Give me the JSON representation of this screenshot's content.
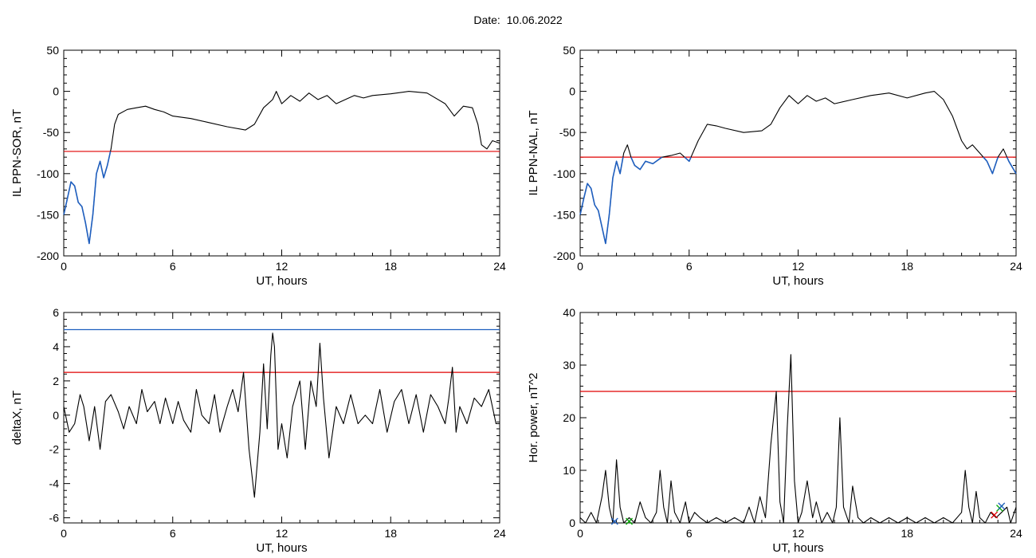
{
  "page": {
    "title": "Date:  10.06.2022"
  },
  "colors": {
    "axis": "#000000",
    "trace": "#000000",
    "highlight": "#1f5fbf",
    "red_threshold": "#e00000",
    "blue_threshold": "#1f5fbf",
    "green_marker": "#00aa00"
  },
  "chart_data": [
    {
      "type": "line",
      "id": "il-ppn-sor",
      "xlabel": "UT, hours",
      "ylabel": "IL PPN-SOR, nT",
      "xlim": [
        0,
        24
      ],
      "ylim": [
        -200,
        50
      ],
      "xticks": [
        0,
        6,
        12,
        18,
        24
      ],
      "yticks": [
        50,
        0,
        -50,
        -100,
        -150,
        -200
      ],
      "x": [
        0,
        0.2,
        0.4,
        0.6,
        0.8,
        1.0,
        1.2,
        1.4,
        1.6,
        1.8,
        2.0,
        2.2,
        2.4,
        2.6,
        2.8,
        3.0,
        3.5,
        4.0,
        4.5,
        5.0,
        5.5,
        6.0,
        7.0,
        8.0,
        9.0,
        10.0,
        10.5,
        11.0,
        11.5,
        11.7,
        12.0,
        12.5,
        13.0,
        13.5,
        14.0,
        14.5,
        15.0,
        15.5,
        16.0,
        16.5,
        17.0,
        18.0,
        19.0,
        20.0,
        21.0,
        21.5,
        22.0,
        22.5,
        22.8,
        23.0,
        23.3,
        23.6,
        24.0
      ],
      "series": [
        {
          "values": [
            -150,
            -130,
            -110,
            -115,
            -135,
            -140,
            -160,
            -185,
            -150,
            -100,
            -85,
            -105,
            -90,
            -70,
            -40,
            -28,
            -22,
            -20,
            -18,
            -22,
            -25,
            -30,
            -33,
            -38,
            -43,
            -47,
            -40,
            -20,
            -10,
            0,
            -15,
            -5,
            -12,
            -2,
            -10,
            -5,
            -15,
            -10,
            -5,
            -8,
            -5,
            -3,
            0,
            -2,
            -15,
            -30,
            -18,
            -20,
            -40,
            -65,
            -70,
            -60,
            -63
          ],
          "highlight_below": -73
        }
      ],
      "thresholds": [
        {
          "value": -73,
          "color": "red"
        }
      ]
    },
    {
      "type": "line",
      "id": "il-ppn-nal",
      "xlabel": "UT, hours",
      "ylabel": "IL PPN-NAL, nT",
      "xlim": [
        0,
        24
      ],
      "ylim": [
        -200,
        50
      ],
      "xticks": [
        0,
        6,
        12,
        18,
        24
      ],
      "yticks": [
        50,
        0,
        -50,
        -100,
        -150,
        -200
      ],
      "x": [
        0,
        0.2,
        0.4,
        0.6,
        0.8,
        1.0,
        1.2,
        1.4,
        1.6,
        1.8,
        2.0,
        2.2,
        2.4,
        2.6,
        2.8,
        3.0,
        3.3,
        3.6,
        4.0,
        4.5,
        5.0,
        5.5,
        6.0,
        6.5,
        7.0,
        7.5,
        8.0,
        9.0,
        10.0,
        10.5,
        11.0,
        11.5,
        12.0,
        12.5,
        13.0,
        13.5,
        14.0,
        15.0,
        16.0,
        17.0,
        18.0,
        19.0,
        19.5,
        20.0,
        20.5,
        21.0,
        21.3,
        21.6,
        22.0,
        22.4,
        22.7,
        23.0,
        23.3,
        23.6,
        24.0
      ],
      "series": [
        {
          "values": [
            -150,
            -130,
            -112,
            -118,
            -138,
            -145,
            -165,
            -185,
            -150,
            -105,
            -85,
            -100,
            -75,
            -65,
            -80,
            -90,
            -95,
            -85,
            -88,
            -80,
            -78,
            -75,
            -85,
            -60,
            -40,
            -42,
            -45,
            -50,
            -48,
            -40,
            -20,
            -5,
            -15,
            -5,
            -12,
            -8,
            -15,
            -10,
            -5,
            -2,
            -8,
            -2,
            0,
            -10,
            -30,
            -60,
            -70,
            -65,
            -75,
            -85,
            -100,
            -80,
            -70,
            -85,
            -100
          ],
          "highlight_below": -80
        }
      ],
      "thresholds": [
        {
          "value": -80,
          "color": "red"
        }
      ]
    },
    {
      "type": "line",
      "id": "delta-x",
      "xlabel": "UT, hours",
      "ylabel": "deltaX, nT",
      "xlim": [
        0,
        24
      ],
      "ylim": [
        -6.3,
        6
      ],
      "xticks": [
        0,
        6,
        12,
        18,
        24
      ],
      "yticks": [
        6,
        4,
        2,
        0,
        -2,
        -4,
        -6
      ],
      "x": [
        0,
        0.3,
        0.6,
        0.9,
        1.1,
        1.4,
        1.7,
        2.0,
        2.3,
        2.6,
        3.0,
        3.3,
        3.6,
        4.0,
        4.3,
        4.6,
        5.0,
        5.3,
        5.6,
        6.0,
        6.3,
        6.6,
        7.0,
        7.3,
        7.6,
        8.0,
        8.3,
        8.6,
        9.0,
        9.3,
        9.6,
        9.9,
        10.2,
        10.5,
        10.8,
        11.0,
        11.2,
        11.4,
        11.5,
        11.6,
        11.8,
        12.0,
        12.3,
        12.6,
        13.0,
        13.3,
        13.6,
        13.9,
        14.1,
        14.3,
        14.6,
        15.0,
        15.4,
        15.8,
        16.2,
        16.6,
        17.0,
        17.4,
        17.8,
        18.2,
        18.6,
        19.0,
        19.4,
        19.8,
        20.2,
        20.6,
        21.0,
        21.2,
        21.4,
        21.6,
        21.8,
        22.2,
        22.6,
        23.0,
        23.4,
        23.8,
        24.0
      ],
      "series": [
        {
          "values": [
            0.5,
            -1,
            -0.5,
            1.2,
            0.5,
            -1.5,
            0.5,
            -2,
            0.8,
            1.2,
            0.2,
            -0.8,
            0.5,
            -0.5,
            1.5,
            0.2,
            0.8,
            -0.5,
            1,
            -0.5,
            0.8,
            -0.3,
            -1,
            1.5,
            0,
            -0.5,
            1.2,
            -1,
            0.5,
            1.5,
            0.2,
            2.5,
            -2,
            -4.8,
            -1,
            3,
            -0.8,
            3.5,
            4.8,
            4,
            -2,
            -0.5,
            -2.5,
            0.5,
            2,
            -2,
            2,
            0.5,
            4.2,
            1,
            -2.5,
            0.5,
            -0.5,
            1.2,
            -0.5,
            0,
            -0.5,
            1.5,
            -1,
            0.8,
            1.5,
            -0.5,
            1.2,
            -1,
            1.2,
            0.5,
            -0.5,
            1,
            2.8,
            -1,
            0.5,
            -0.5,
            1,
            0.5,
            1.5,
            -0.5,
            -0.5
          ]
        }
      ],
      "thresholds": [
        {
          "value": 5,
          "color": "blue"
        },
        {
          "value": 2.5,
          "color": "red"
        }
      ]
    },
    {
      "type": "line",
      "id": "hor-power",
      "xlabel": "UT, hours",
      "ylabel": "Hor. power, nT^2",
      "xlim": [
        0,
        24
      ],
      "ylim": [
        0,
        40
      ],
      "xticks": [
        0,
        6,
        12,
        18,
        24
      ],
      "yticks": [
        40,
        30,
        20,
        10,
        0
      ],
      "x": [
        0,
        0.3,
        0.6,
        0.9,
        1.2,
        1.4,
        1.6,
        1.8,
        2.0,
        2.2,
        2.4,
        2.7,
        3.0,
        3.3,
        3.6,
        3.9,
        4.2,
        4.4,
        4.6,
        4.8,
        5.0,
        5.2,
        5.5,
        5.8,
        6.0,
        6.3,
        6.6,
        7.0,
        7.5,
        8.0,
        8.5,
        9.0,
        9.3,
        9.6,
        9.9,
        10.2,
        10.5,
        10.8,
        11.0,
        11.2,
        11.4,
        11.6,
        11.8,
        12.0,
        12.2,
        12.5,
        12.8,
        13.0,
        13.3,
        13.6,
        13.9,
        14.1,
        14.3,
        14.5,
        14.8,
        15.0,
        15.3,
        15.6,
        16.0,
        16.5,
        17.0,
        17.5,
        18.0,
        18.5,
        19.0,
        19.5,
        20.0,
        20.5,
        21.0,
        21.2,
        21.4,
        21.6,
        21.8,
        22.0,
        22.3,
        22.6,
        22.9,
        23.2,
        23.5,
        23.7,
        24.0
      ],
      "series": [
        {
          "values": [
            1,
            0,
            2,
            0,
            5,
            10,
            3,
            0,
            12,
            3,
            0,
            1,
            0,
            4,
            1,
            0,
            2,
            10,
            3,
            0,
            8,
            2,
            0,
            4,
            0,
            2,
            1,
            0,
            1,
            0,
            1,
            0,
            3,
            0,
            5,
            1,
            15,
            25,
            4,
            0,
            18,
            32,
            8,
            0,
            2,
            8,
            1,
            4,
            0,
            2,
            0,
            3,
            20,
            3,
            0,
            7,
            1,
            0,
            1,
            0,
            1,
            0,
            1,
            0,
            1,
            0,
            1,
            0,
            2,
            10,
            3,
            0,
            6,
            1,
            0,
            2,
            1,
            2,
            3,
            0,
            3
          ]
        }
      ],
      "thresholds": [
        {
          "value": 25,
          "color": "red"
        }
      ],
      "markers": [
        {
          "x": 1.9,
          "y": 0.3,
          "color": "blue"
        },
        {
          "x": 2.7,
          "y": 0.3,
          "color": "green"
        },
        {
          "x": 22.8,
          "y": 1.5,
          "color": "red"
        },
        {
          "x": 23.1,
          "y": 2.8,
          "color": "green"
        },
        {
          "x": 23.2,
          "y": 3.2,
          "color": "blue"
        }
      ]
    }
  ]
}
